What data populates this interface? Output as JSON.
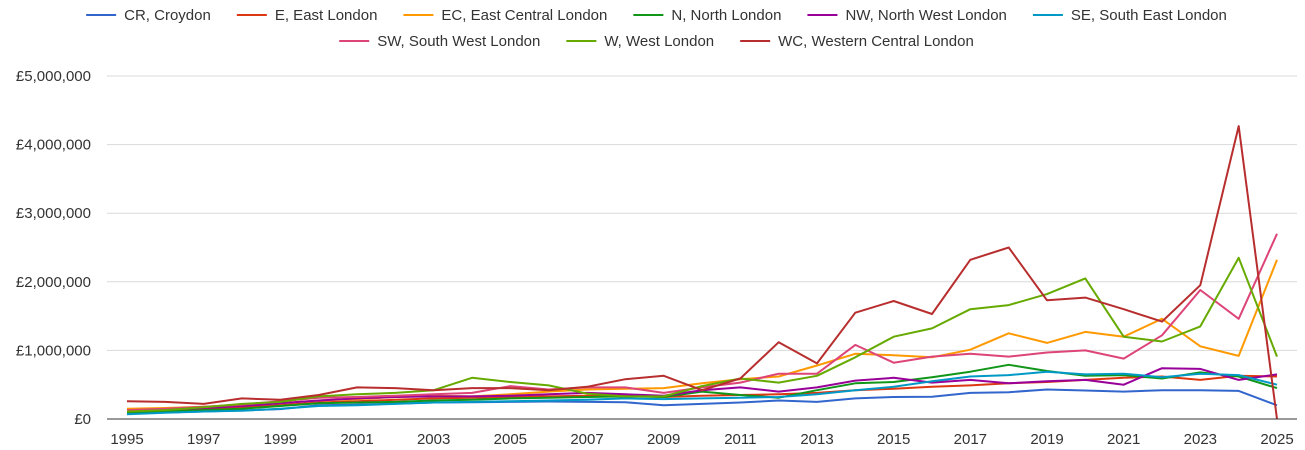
{
  "chart_data": {
    "type": "line",
    "title": "",
    "xlabel": "",
    "ylabel": "",
    "ylim": [
      0,
      5000000
    ],
    "y_ticks": [
      0,
      1000000,
      2000000,
      3000000,
      4000000,
      5000000
    ],
    "y_tick_labels": [
      "£0",
      "£1,000,000",
      "£2,000,000",
      "£3,000,000",
      "£4,000,000",
      "£5,000,000"
    ],
    "x_tick_labels": [
      "1995",
      "1997",
      "1999",
      "2001",
      "2003",
      "2005",
      "2007",
      "2009",
      "2011",
      "2013",
      "2015",
      "2017",
      "2019",
      "2021",
      "2023",
      "2025"
    ],
    "grid": true,
    "legend_position": "top",
    "x": [
      1995,
      1996,
      1997,
      1998,
      1999,
      2000,
      2001,
      2002,
      2003,
      2004,
      2005,
      2006,
      2007,
      2008,
      2009,
      2010,
      2011,
      2012,
      2013,
      2014,
      2015,
      2016,
      2017,
      2018,
      2019,
      2020,
      2021,
      2022,
      2023,
      2024,
      2025
    ],
    "series": [
      {
        "name": "CR, Croydon",
        "color": "#3366cc",
        "values": [
          80000,
          95000,
          110000,
          125000,
          145000,
          200000,
          210000,
          225000,
          240000,
          245000,
          250000,
          255000,
          250000,
          245000,
          200000,
          220000,
          240000,
          270000,
          250000,
          300000,
          320000,
          325000,
          380000,
          390000,
          430000,
          415000,
          400000,
          420000,
          420000,
          410000,
          200000
        ]
      },
      {
        "name": "E, East London",
        "color": "#dc3912",
        "values": [
          120000,
          130000,
          150000,
          170000,
          200000,
          240000,
          260000,
          280000,
          300000,
          310000,
          320000,
          330000,
          340000,
          340000,
          320000,
          340000,
          350000,
          360000,
          380000,
          420000,
          440000,
          470000,
          490000,
          520000,
          540000,
          570000,
          600000,
          620000,
          570000,
          630000,
          620000
        ]
      },
      {
        "name": "EC, East Central London",
        "color": "#ff9900",
        "values": [
          150000,
          160000,
          180000,
          200000,
          230000,
          270000,
          290000,
          320000,
          340000,
          330000,
          360000,
          400000,
          430000,
          440000,
          450000,
          520000,
          580000,
          620000,
          780000,
          950000,
          930000,
          900000,
          1010000,
          1250000,
          1110000,
          1270000,
          1200000,
          1460000,
          1060000,
          920000,
          2320000
        ]
      },
      {
        "name": "N, North London",
        "color": "#109618",
        "values": [
          100000,
          110000,
          130000,
          150000,
          190000,
          230000,
          240000,
          250000,
          270000,
          280000,
          300000,
          310000,
          320000,
          330000,
          320000,
          400000,
          350000,
          310000,
          420000,
          520000,
          540000,
          610000,
          690000,
          790000,
          700000,
          630000,
          640000,
          590000,
          680000,
          620000,
          450000
        ]
      },
      {
        "name": "NW, North West London",
        "color": "#990099",
        "values": [
          120000,
          140000,
          160000,
          190000,
          230000,
          270000,
          300000,
          320000,
          330000,
          330000,
          340000,
          360000,
          380000,
          360000,
          340000,
          420000,
          460000,
          400000,
          460000,
          560000,
          600000,
          530000,
          570000,
          520000,
          550000,
          570000,
          500000,
          740000,
          730000,
          570000,
          650000
        ]
      },
      {
        "name": "SE, South East London",
        "color": "#0099c6",
        "values": [
          70000,
          90000,
          110000,
          120000,
          150000,
          190000,
          200000,
          220000,
          240000,
          250000,
          260000,
          270000,
          280000,
          300000,
          290000,
          300000,
          310000,
          320000,
          360000,
          420000,
          470000,
          550000,
          620000,
          640000,
          690000,
          650000,
          660000,
          610000,
          660000,
          640000,
          500000
        ]
      },
      {
        "name": "SW, South West London",
        "color": "#dd4477",
        "values": [
          130000,
          150000,
          180000,
          210000,
          260000,
          310000,
          320000,
          340000,
          360000,
          380000,
          480000,
          430000,
          460000,
          460000,
          380000,
          460000,
          530000,
          660000,
          660000,
          1080000,
          820000,
          910000,
          950000,
          910000,
          970000,
          1000000,
          880000,
          1220000,
          1880000,
          1460000,
          2700000
        ]
      },
      {
        "name": "W, West London",
        "color": "#66aa00",
        "values": [
          110000,
          130000,
          170000,
          220000,
          250000,
          330000,
          360000,
          380000,
          420000,
          600000,
          540000,
          490000,
          370000,
          330000,
          330000,
          480000,
          590000,
          530000,
          630000,
          900000,
          1200000,
          1320000,
          1600000,
          1660000,
          1820000,
          2050000,
          1200000,
          1130000,
          1350000,
          2350000,
          910000
        ]
      },
      {
        "name": "WC, Western Central London",
        "color": "#b82e2e",
        "values": [
          260000,
          250000,
          220000,
          300000,
          280000,
          350000,
          460000,
          450000,
          420000,
          450000,
          450000,
          420000,
          470000,
          580000,
          630000,
          420000,
          590000,
          1120000,
          810000,
          1550000,
          1720000,
          1530000,
          2320000,
          2500000,
          1730000,
          1770000,
          1600000,
          1420000,
          1950000,
          4270000,
          0
        ]
      }
    ]
  }
}
